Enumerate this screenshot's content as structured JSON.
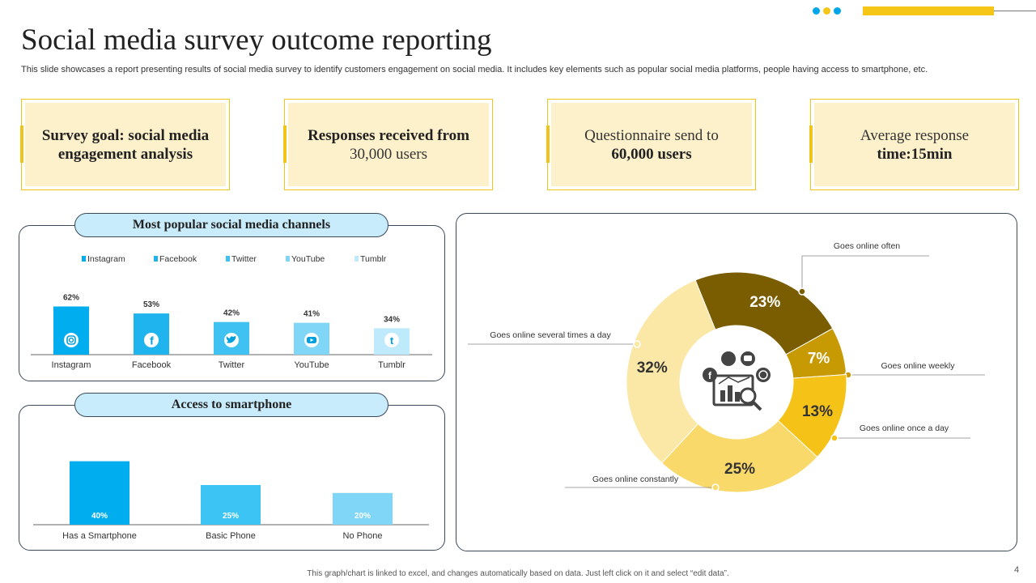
{
  "title": "Social media survey outcome reporting",
  "subtitle": "This slide showcases a report presenting results of social media survey to identify customers engagement on social media. It includes key elements such as popular social media platforms, people having access to smartphone, etc.",
  "cards": [
    {
      "line1": "Survey goal: social media",
      "line2": "engagement analysis"
    },
    {
      "line1": "Responses received from",
      "line2": "30,000 users"
    },
    {
      "line1": "Questionnaire send to",
      "line2": "60,000 users"
    },
    {
      "line1": "Average response",
      "line2": "time:15min"
    }
  ],
  "colors": {
    "accent_yellow": "#f0c419",
    "card_fill": "#fdf1cc",
    "panel_title_fill": "#c8ecfb",
    "deco_dots": [
      "#00a6e8",
      "#f5c518",
      "#00a6e8"
    ]
  },
  "channels_panel": {
    "title": "Most popular social media channels"
  },
  "smartphone_panel": {
    "title": "Access to smartphone"
  },
  "footer_note": "This graph/chart is linked to excel, and changes automatically based on data. Just left click on it and select “edit data”.",
  "page_number": "4",
  "chart_data": [
    {
      "type": "bar",
      "title": "Most popular social media channels",
      "categories": [
        "Instagram",
        "Facebook",
        "Twitter",
        "YouTube",
        "Tumblr"
      ],
      "legend": [
        "Instagram",
        "Facebook",
        "Twitter",
        "YouTube",
        "Tumblr"
      ],
      "values": [
        62,
        53,
        42,
        41,
        34
      ],
      "value_labels": [
        "62%",
        "53%",
        "42%",
        "41%",
        "34%"
      ],
      "colors": [
        "#00aeef",
        "#1fb4ee",
        "#3fc1f2",
        "#7fd6f6",
        "#bfeafb"
      ],
      "icons": [
        "instagram-icon",
        "facebook-icon",
        "twitter-icon",
        "youtube-icon",
        "tumblr-icon"
      ],
      "ylim": [
        0,
        100
      ]
    },
    {
      "type": "bar",
      "title": "Access to smartphone",
      "categories": [
        "Has a Smartphone",
        "Basic Phone",
        "No Phone"
      ],
      "values": [
        40,
        25,
        20
      ],
      "value_labels": [
        "40%",
        "25%",
        "20%"
      ],
      "colors": [
        "#00aeef",
        "#3cc4f4",
        "#7fd6f6"
      ],
      "ylim": [
        0,
        50
      ]
    },
    {
      "type": "pie",
      "subtype": "donut",
      "slices": [
        {
          "label": "Goes online often",
          "value": 23,
          "display": "23%",
          "color": "#7a5d00",
          "text_color": "#ffffff"
        },
        {
          "label": "Goes online weekly",
          "value": 7,
          "display": "7%",
          "color": "#c79a04",
          "text_color": "#ffffff"
        },
        {
          "label": "Goes online once a day",
          "value": 13,
          "display": "13%",
          "color": "#f5c217",
          "text_color": "#333333"
        },
        {
          "label": "Goes online constantly",
          "value": 25,
          "display": "25%",
          "color": "#fad96b",
          "text_color": "#333333"
        },
        {
          "label": "Goes online several times a day",
          "value": 32,
          "display": "32%",
          "color": "#fbe7a6",
          "text_color": "#333333"
        }
      ],
      "center_icon": "social-analytics-icon"
    }
  ]
}
